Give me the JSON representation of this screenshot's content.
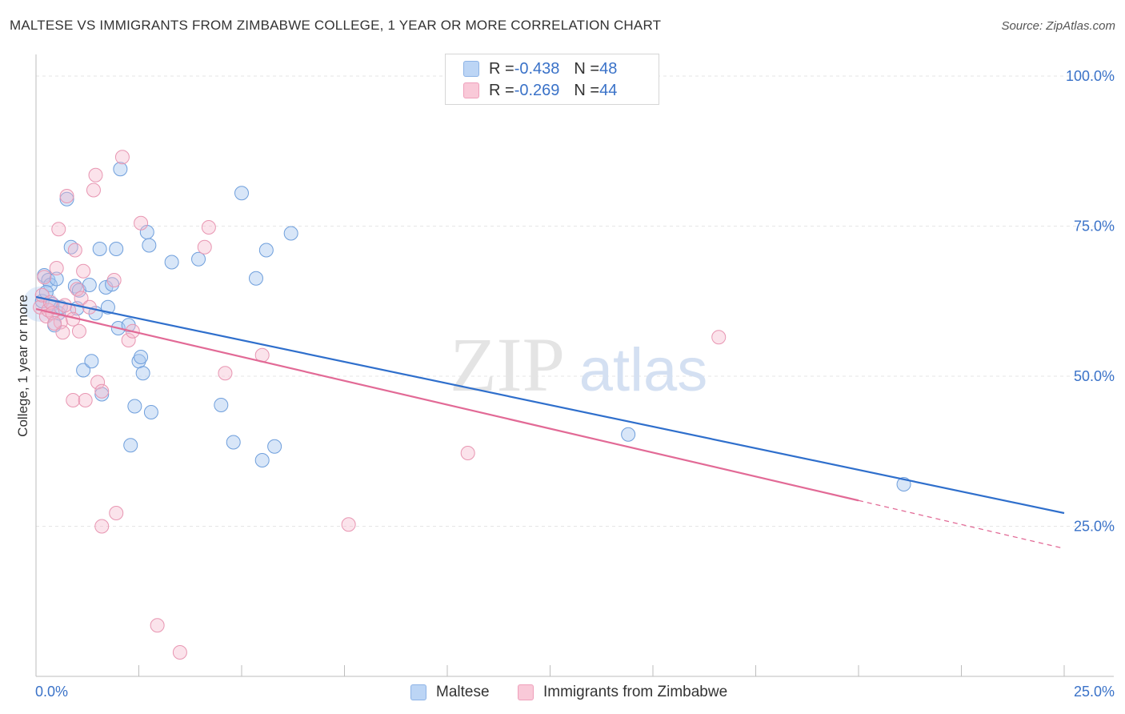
{
  "header": {
    "title": "MALTESE VS IMMIGRANTS FROM ZIMBABWE COLLEGE, 1 YEAR OR MORE CORRELATION CHART",
    "source": "Source: ZipAtlas.com"
  },
  "watermark": {
    "zip": "ZIP",
    "atlas": "atlas"
  },
  "legend": {
    "rows": [
      {
        "r_label": "R = ",
        "r_value": "-0.438",
        "n_label": "N = ",
        "n_value": "48"
      },
      {
        "r_label": "R = ",
        "r_value": "-0.269",
        "n_label": "N = ",
        "n_value": "44"
      }
    ]
  },
  "bottom_legend": {
    "series1": "Maltese",
    "series2": "Immigrants from Zimbabwe"
  },
  "chart_data": {
    "type": "scatter",
    "title": "MALTESE VS IMMIGRANTS FROM ZIMBABWE COLLEGE, 1 YEAR OR MORE CORRELATION CHART",
    "xlabel": "",
    "ylabel": "College, 1 year or more",
    "xlim": [
      0,
      25
    ],
    "ylim": [
      0,
      105
    ],
    "x_tick_labels": [
      "0.0%",
      "25.0%"
    ],
    "y_tick_labels": [
      "100.0%",
      "75.0%",
      "50.0%",
      "25.0%"
    ],
    "y_ticks": [
      100,
      75,
      50,
      25
    ],
    "grid": true,
    "legend_position": "top-center",
    "colors": {
      "maltese": "#a8c8f0",
      "maltese_line": "#2f6fcc",
      "zimbabwe": "#f5b8cc",
      "zimbabwe_line": "#e26a96",
      "axis_text": "#3a72c8"
    },
    "series": [
      {
        "name": "Maltese",
        "r": -0.438,
        "n": 48,
        "points": [
          [
            0.15,
            62.5
          ],
          [
            0.2,
            66.8
          ],
          [
            0.3,
            66
          ],
          [
            0.35,
            65.2
          ],
          [
            0.4,
            62
          ],
          [
            0.45,
            58.5
          ],
          [
            0.55,
            60.5
          ],
          [
            0.6,
            61.5
          ],
          [
            0.75,
            79.5
          ],
          [
            0.85,
            71.5
          ],
          [
            0.95,
            65
          ],
          [
            1.05,
            64.3
          ],
          [
            1.15,
            51
          ],
          [
            1.3,
            65.2
          ],
          [
            1.35,
            52.5
          ],
          [
            1.45,
            60.5
          ],
          [
            1.55,
            71.2
          ],
          [
            1.6,
            47
          ],
          [
            1.7,
            64.8
          ],
          [
            1.75,
            61.5
          ],
          [
            1.85,
            65.3
          ],
          [
            1.95,
            71.2
          ],
          [
            2.05,
            84.5
          ],
          [
            2.0,
            58
          ],
          [
            2.25,
            58.5
          ],
          [
            2.3,
            38.5
          ],
          [
            2.4,
            45
          ],
          [
            2.5,
            52.5
          ],
          [
            2.55,
            53.2
          ],
          [
            2.6,
            50.5
          ],
          [
            2.7,
            74
          ],
          [
            2.75,
            71.8
          ],
          [
            2.8,
            44
          ],
          [
            3.3,
            69
          ],
          [
            3.95,
            69.5
          ],
          [
            4.5,
            45.2
          ],
          [
            4.8,
            39
          ],
          [
            5.0,
            80.5
          ],
          [
            5.35,
            66.3
          ],
          [
            5.5,
            36
          ],
          [
            5.6,
            71
          ],
          [
            5.8,
            38.3
          ],
          [
            6.2,
            73.8
          ],
          [
            0.25,
            64
          ],
          [
            0.5,
            66.2
          ],
          [
            1.0,
            61.3
          ],
          [
            14.4,
            40.3
          ],
          [
            21.1,
            32
          ]
        ],
        "trend": {
          "x0": 0,
          "y0": 63.2,
          "x1": 25,
          "y1": 27.2
        }
      },
      {
        "name": "Immigrants from Zimbabwe",
        "r": -0.269,
        "n": 44,
        "points": [
          [
            0.1,
            61.5
          ],
          [
            0.15,
            63.5
          ],
          [
            0.2,
            66.5
          ],
          [
            0.25,
            60
          ],
          [
            0.3,
            61
          ],
          [
            0.35,
            62.3
          ],
          [
            0.4,
            60.5
          ],
          [
            0.5,
            68
          ],
          [
            0.55,
            74.5
          ],
          [
            0.6,
            59
          ],
          [
            0.65,
            57.3
          ],
          [
            0.75,
            80
          ],
          [
            0.8,
            61
          ],
          [
            0.9,
            59.5
          ],
          [
            0.9,
            46
          ],
          [
            0.95,
            71
          ],
          [
            1.0,
            64.5
          ],
          [
            1.05,
            57.5
          ],
          [
            1.1,
            63
          ],
          [
            1.15,
            67.5
          ],
          [
            1.2,
            46
          ],
          [
            1.3,
            61.5
          ],
          [
            1.4,
            81
          ],
          [
            1.45,
            83.5
          ],
          [
            1.5,
            49
          ],
          [
            1.6,
            47.5
          ],
          [
            1.6,
            25
          ],
          [
            1.9,
            66
          ],
          [
            1.95,
            27.2
          ],
          [
            2.1,
            86.5
          ],
          [
            2.25,
            56
          ],
          [
            2.35,
            57.5
          ],
          [
            2.55,
            75.5
          ],
          [
            2.95,
            8.5
          ],
          [
            3.5,
            4
          ],
          [
            4.1,
            71.5
          ],
          [
            4.2,
            74.8
          ],
          [
            4.6,
            50.5
          ],
          [
            5.5,
            53.5
          ],
          [
            7.6,
            25.3
          ],
          [
            10.5,
            37.2
          ],
          [
            16.6,
            56.5
          ],
          [
            0.45,
            58.8
          ],
          [
            0.7,
            61.8
          ]
        ],
        "trend": {
          "x0": 0,
          "y0": 61.2,
          "x1": 20,
          "y1": 29.3
        },
        "trend_dashed": {
          "x0": 20,
          "y0": 29.3,
          "x1": 25,
          "y1": 21.3
        }
      }
    ]
  }
}
